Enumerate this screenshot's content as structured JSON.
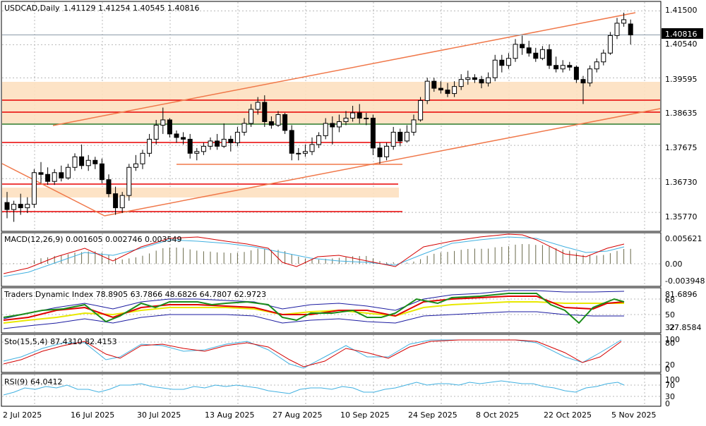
{
  "header": {
    "symbol_tf": "USDCAD,Daily",
    "ohlc": "1.41129 1.41254 1.40545 1.40816"
  },
  "price_axis": {
    "ticks": [
      "1.41500",
      "1.40540",
      "1.39595",
      "1.38635",
      "1.37675",
      "1.36730",
      "1.35770"
    ],
    "current": "1.40816",
    "range": [
      1.3525,
      1.4175
    ]
  },
  "date_axis": {
    "labels": [
      "2 Jul 2025",
      "16 Jul 2025",
      "30 Jul 2025",
      "13 Aug 2025",
      "27 Aug 2025",
      "10 Sep 2025",
      "24 Sep 2025",
      "8 Oct 2025",
      "22 Oct 2025",
      "5 Nov 2025"
    ]
  },
  "indicators": {
    "macd": {
      "label": "MACD(12,26,9) 0.001605 0.002746 0.003549",
      "ticks": [
        "0.005621",
        "0.00",
        "-0.003948"
      ]
    },
    "tdi": {
      "label": "Traders Dynamic Index 78.8905 63.7866 48.6826 64.7807 62.9723",
      "ticks": [
        "81.6896",
        "68",
        "50",
        "32",
        "27.8584"
      ]
    },
    "sto": {
      "label": "Sto(15,5,4) 87.4310 82.4153",
      "ticks": [
        "100",
        "80",
        "20",
        "0"
      ]
    },
    "rsi": {
      "label": "RSI(9) 64.0412",
      "ticks": [
        "100",
        "70",
        "30",
        "0"
      ]
    }
  },
  "colors": {
    "bull_candle": "#ffffff",
    "bear_candle": "#000000",
    "support_resistance": "#e80000",
    "channel": "#f0784a",
    "zone": "#fde0c0",
    "green_level": "#2d7d2d",
    "macd_signal": "#d40000",
    "macd_main": "#40b0e0",
    "tdi_yellow": "#e8e800",
    "tdi_red": "#e00000",
    "tdi_green": "#1a8c1a",
    "tdi_band": "#1a1aa0"
  },
  "chart_data": {
    "type": "candlestick",
    "title": "USDCAD,Daily",
    "ylim": [
      1.3525,
      1.4175
    ],
    "current_price": 1.40816,
    "candles": [
      {
        "date": "2025-07-01",
        "o": 1.3605,
        "h": 1.3635,
        "l": 1.356,
        "c": 1.3585
      },
      {
        "date": "2025-07-02",
        "o": 1.3585,
        "h": 1.361,
        "l": 1.355,
        "c": 1.36
      },
      {
        "date": "2025-07-03",
        "o": 1.36,
        "h": 1.363,
        "l": 1.357,
        "c": 1.359
      },
      {
        "date": "2025-07-04",
        "o": 1.359,
        "h": 1.362,
        "l": 1.3575,
        "c": 1.36
      },
      {
        "date": "2025-07-07",
        "o": 1.36,
        "h": 1.37,
        "l": 1.359,
        "c": 1.369
      },
      {
        "date": "2025-07-08",
        "o": 1.369,
        "h": 1.372,
        "l": 1.366,
        "c": 1.3685
      },
      {
        "date": "2025-07-09",
        "o": 1.3685,
        "h": 1.3705,
        "l": 1.3655,
        "c": 1.3665
      },
      {
        "date": "2025-07-10",
        "o": 1.3665,
        "h": 1.37,
        "l": 1.3655,
        "c": 1.369
      },
      {
        "date": "2025-07-11",
        "o": 1.369,
        "h": 1.371,
        "l": 1.3665,
        "c": 1.3675
      },
      {
        "date": "2025-07-14",
        "o": 1.3675,
        "h": 1.3715,
        "l": 1.367,
        "c": 1.3705
      },
      {
        "date": "2025-07-15",
        "o": 1.3705,
        "h": 1.3745,
        "l": 1.3695,
        "c": 1.3735
      },
      {
        "date": "2025-07-16",
        "o": 1.3735,
        "h": 1.377,
        "l": 1.37,
        "c": 1.371
      },
      {
        "date": "2025-07-17",
        "o": 1.371,
        "h": 1.374,
        "l": 1.3695,
        "c": 1.3725
      },
      {
        "date": "2025-07-18",
        "o": 1.3725,
        "h": 1.3735,
        "l": 1.37,
        "c": 1.3715
      },
      {
        "date": "2025-07-21",
        "o": 1.3715,
        "h": 1.373,
        "l": 1.366,
        "c": 1.367
      },
      {
        "date": "2025-07-22",
        "o": 1.367,
        "h": 1.3685,
        "l": 1.362,
        "c": 1.363
      },
      {
        "date": "2025-07-23",
        "o": 1.363,
        "h": 1.365,
        "l": 1.357,
        "c": 1.359
      },
      {
        "date": "2025-07-24",
        "o": 1.359,
        "h": 1.3635,
        "l": 1.3575,
        "c": 1.3625
      },
      {
        "date": "2025-07-25",
        "o": 1.3625,
        "h": 1.3715,
        "l": 1.361,
        "c": 1.3705
      },
      {
        "date": "2025-07-28",
        "o": 1.3705,
        "h": 1.374,
        "l": 1.3695,
        "c": 1.3715
      },
      {
        "date": "2025-07-29",
        "o": 1.3715,
        "h": 1.3755,
        "l": 1.37,
        "c": 1.3745
      },
      {
        "date": "2025-07-30",
        "o": 1.3745,
        "h": 1.38,
        "l": 1.3735,
        "c": 1.3785
      },
      {
        "date": "2025-07-31",
        "o": 1.3785,
        "h": 1.384,
        "l": 1.377,
        "c": 1.3825
      },
      {
        "date": "2025-08-01",
        "o": 1.3825,
        "h": 1.3875,
        "l": 1.38,
        "c": 1.384
      },
      {
        "date": "2025-08-04",
        "o": 1.384,
        "h": 1.3845,
        "l": 1.379,
        "c": 1.38
      },
      {
        "date": "2025-08-05",
        "o": 1.38,
        "h": 1.381,
        "l": 1.3775,
        "c": 1.379
      },
      {
        "date": "2025-08-06",
        "o": 1.379,
        "h": 1.3805,
        "l": 1.377,
        "c": 1.3785
      },
      {
        "date": "2025-08-07",
        "o": 1.3785,
        "h": 1.38,
        "l": 1.373,
        "c": 1.3745
      },
      {
        "date": "2025-08-08",
        "o": 1.3745,
        "h": 1.376,
        "l": 1.3725,
        "c": 1.375
      },
      {
        "date": "2025-08-11",
        "o": 1.375,
        "h": 1.3775,
        "l": 1.374,
        "c": 1.3765
      },
      {
        "date": "2025-08-12",
        "o": 1.3765,
        "h": 1.379,
        "l": 1.3755,
        "c": 1.378
      },
      {
        "date": "2025-08-13",
        "o": 1.378,
        "h": 1.38,
        "l": 1.3755,
        "c": 1.3765
      },
      {
        "date": "2025-08-14",
        "o": 1.3765,
        "h": 1.383,
        "l": 1.376,
        "c": 1.3785
      },
      {
        "date": "2025-08-15",
        "o": 1.3785,
        "h": 1.3795,
        "l": 1.375,
        "c": 1.3775
      },
      {
        "date": "2025-08-18",
        "o": 1.3775,
        "h": 1.382,
        "l": 1.3765,
        "c": 1.3805
      },
      {
        "date": "2025-08-19",
        "o": 1.3805,
        "h": 1.3845,
        "l": 1.3795,
        "c": 1.383
      },
      {
        "date": "2025-08-20",
        "o": 1.383,
        "h": 1.3885,
        "l": 1.382,
        "c": 1.387
      },
      {
        "date": "2025-08-21",
        "o": 1.387,
        "h": 1.3905,
        "l": 1.3855,
        "c": 1.389
      },
      {
        "date": "2025-08-22",
        "o": 1.389,
        "h": 1.391,
        "l": 1.382,
        "c": 1.3835
      },
      {
        "date": "2025-08-25",
        "o": 1.3835,
        "h": 1.385,
        "l": 1.3815,
        "c": 1.3825
      },
      {
        "date": "2025-08-26",
        "o": 1.3825,
        "h": 1.3865,
        "l": 1.382,
        "c": 1.3855
      },
      {
        "date": "2025-08-27",
        "o": 1.3855,
        "h": 1.386,
        "l": 1.38,
        "c": 1.381
      },
      {
        "date": "2025-08-28",
        "o": 1.381,
        "h": 1.3825,
        "l": 1.3725,
        "c": 1.3745
      },
      {
        "date": "2025-08-29",
        "o": 1.3745,
        "h": 1.376,
        "l": 1.3725,
        "c": 1.3745
      },
      {
        "date": "2025-09-01",
        "o": 1.3745,
        "h": 1.377,
        "l": 1.3735,
        "c": 1.375
      },
      {
        "date": "2025-09-02",
        "o": 1.375,
        "h": 1.379,
        "l": 1.374,
        "c": 1.377
      },
      {
        "date": "2025-09-03",
        "o": 1.377,
        "h": 1.3805,
        "l": 1.376,
        "c": 1.3795
      },
      {
        "date": "2025-09-04",
        "o": 1.3795,
        "h": 1.3845,
        "l": 1.3785,
        "c": 1.383
      },
      {
        "date": "2025-09-05",
        "o": 1.383,
        "h": 1.385,
        "l": 1.377,
        "c": 1.382
      },
      {
        "date": "2025-09-08",
        "o": 1.382,
        "h": 1.3855,
        "l": 1.3805,
        "c": 1.3835
      },
      {
        "date": "2025-09-09",
        "o": 1.3835,
        "h": 1.3865,
        "l": 1.3825,
        "c": 1.3845
      },
      {
        "date": "2025-09-10",
        "o": 1.3845,
        "h": 1.388,
        "l": 1.3835,
        "c": 1.386
      },
      {
        "date": "2025-09-11",
        "o": 1.386,
        "h": 1.3885,
        "l": 1.383,
        "c": 1.3845
      },
      {
        "date": "2025-09-12",
        "o": 1.3845,
        "h": 1.386,
        "l": 1.3825,
        "c": 1.3845
      },
      {
        "date": "2025-09-15",
        "o": 1.3845,
        "h": 1.3855,
        "l": 1.374,
        "c": 1.376
      },
      {
        "date": "2025-09-16",
        "o": 1.376,
        "h": 1.3775,
        "l": 1.3715,
        "c": 1.3735
      },
      {
        "date": "2025-09-17",
        "o": 1.3735,
        "h": 1.3775,
        "l": 1.3725,
        "c": 1.3765
      },
      {
        "date": "2025-09-18",
        "o": 1.3765,
        "h": 1.382,
        "l": 1.3755,
        "c": 1.3805
      },
      {
        "date": "2025-09-19",
        "o": 1.3805,
        "h": 1.3815,
        "l": 1.3765,
        "c": 1.378
      },
      {
        "date": "2025-09-22",
        "o": 1.378,
        "h": 1.3825,
        "l": 1.3775,
        "c": 1.3805
      },
      {
        "date": "2025-09-23",
        "o": 1.3805,
        "h": 1.3855,
        "l": 1.3795,
        "c": 1.384
      },
      {
        "date": "2025-09-24",
        "o": 1.384,
        "h": 1.3905,
        "l": 1.3835,
        "c": 1.3895
      },
      {
        "date": "2025-09-25",
        "o": 1.3895,
        "h": 1.396,
        "l": 1.3885,
        "c": 1.395
      },
      {
        "date": "2025-09-26",
        "o": 1.395,
        "h": 1.396,
        "l": 1.392,
        "c": 1.393
      },
      {
        "date": "2025-09-29",
        "o": 1.393,
        "h": 1.395,
        "l": 1.3915,
        "c": 1.3925
      },
      {
        "date": "2025-09-30",
        "o": 1.3925,
        "h": 1.3945,
        "l": 1.3905,
        "c": 1.3915
      },
      {
        "date": "2025-10-01",
        "o": 1.3915,
        "h": 1.395,
        "l": 1.3905,
        "c": 1.3935
      },
      {
        "date": "2025-10-02",
        "o": 1.3935,
        "h": 1.397,
        "l": 1.3925,
        "c": 1.3955
      },
      {
        "date": "2025-10-03",
        "o": 1.3955,
        "h": 1.398,
        "l": 1.394,
        "c": 1.396
      },
      {
        "date": "2025-10-06",
        "o": 1.396,
        "h": 1.397,
        "l": 1.3945,
        "c": 1.3955
      },
      {
        "date": "2025-10-07",
        "o": 1.3955,
        "h": 1.3965,
        "l": 1.393,
        "c": 1.3945
      },
      {
        "date": "2025-10-08",
        "o": 1.3945,
        "h": 1.3975,
        "l": 1.3935,
        "c": 1.396
      },
      {
        "date": "2025-10-09",
        "o": 1.396,
        "h": 1.4025,
        "l": 1.395,
        "c": 1.401
      },
      {
        "date": "2025-10-10",
        "o": 1.401,
        "h": 1.4025,
        "l": 1.3975,
        "c": 1.3995
      },
      {
        "date": "2025-10-13",
        "o": 1.3995,
        "h": 1.403,
        "l": 1.3985,
        "c": 1.4015
      },
      {
        "date": "2025-10-14",
        "o": 1.4015,
        "h": 1.407,
        "l": 1.4005,
        "c": 1.4055
      },
      {
        "date": "2025-10-15",
        "o": 1.4055,
        "h": 1.408,
        "l": 1.4025,
        "c": 1.4045
      },
      {
        "date": "2025-10-16",
        "o": 1.4045,
        "h": 1.4065,
        "l": 1.402,
        "c": 1.403
      },
      {
        "date": "2025-10-17",
        "o": 1.403,
        "h": 1.4045,
        "l": 1.4005,
        "c": 1.4015
      },
      {
        "date": "2025-10-20",
        "o": 1.4015,
        "h": 1.405,
        "l": 1.401,
        "c": 1.404
      },
      {
        "date": "2025-10-21",
        "o": 1.404,
        "h": 1.4055,
        "l": 1.3985,
        "c": 1.3995
      },
      {
        "date": "2025-10-22",
        "o": 1.3995,
        "h": 1.402,
        "l": 1.3975,
        "c": 1.3985
      },
      {
        "date": "2025-10-23",
        "o": 1.3985,
        "h": 1.401,
        "l": 1.3975,
        "c": 1.3995
      },
      {
        "date": "2025-10-24",
        "o": 1.3995,
        "h": 1.4005,
        "l": 1.398,
        "c": 1.399
      },
      {
        "date": "2025-10-27",
        "o": 1.399,
        "h": 1.3995,
        "l": 1.3945,
        "c": 1.3955
      },
      {
        "date": "2025-10-28",
        "o": 1.3955,
        "h": 1.3965,
        "l": 1.3885,
        "c": 1.3945
      },
      {
        "date": "2025-10-29",
        "o": 1.3945,
        "h": 1.3995,
        "l": 1.3935,
        "c": 1.3985
      },
      {
        "date": "2025-10-30",
        "o": 1.3985,
        "h": 1.4015,
        "l": 1.3975,
        "c": 1.4005
      },
      {
        "date": "2025-10-31",
        "o": 1.4005,
        "h": 1.404,
        "l": 1.3995,
        "c": 1.403
      },
      {
        "date": "2025-11-03",
        "o": 1.403,
        "h": 1.409,
        "l": 1.4025,
        "c": 1.408
      },
      {
        "date": "2025-11-04",
        "o": 1.408,
        "h": 1.413,
        "l": 1.407,
        "c": 1.4115
      },
      {
        "date": "2025-11-05",
        "o": 1.4115,
        "h": 1.4145,
        "l": 1.4105,
        "c": 1.4125
      },
      {
        "date": "2025-11-06",
        "o": 1.41129,
        "h": 1.41254,
        "l": 1.40545,
        "c": 1.40816
      }
    ]
  }
}
